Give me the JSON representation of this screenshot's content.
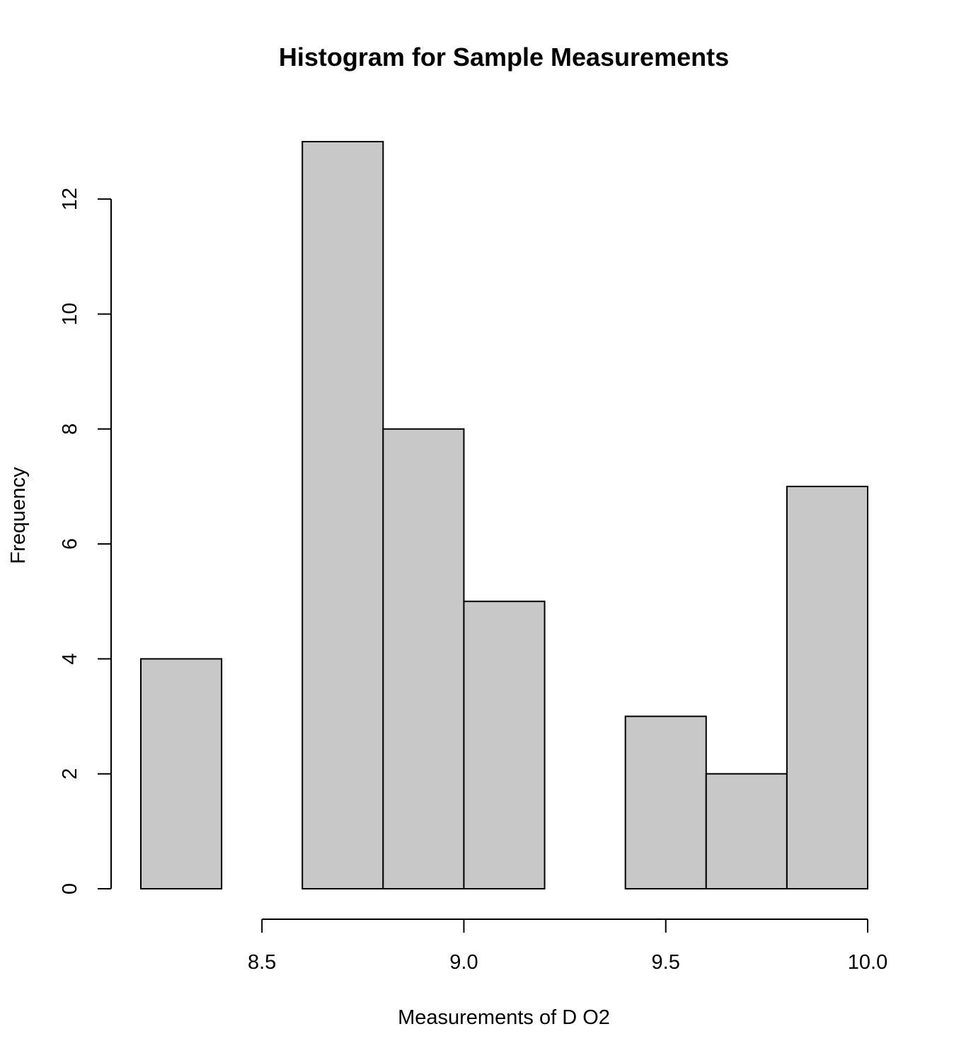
{
  "chart_data": {
    "type": "bar",
    "title": "Histogram for Sample Measurements",
    "xlabel": "Measurements of D O2",
    "ylabel": "Frequency",
    "bin_edges": [
      8.2,
      8.4,
      8.6,
      8.8,
      9.0,
      9.2,
      9.4,
      9.6,
      9.8,
      10.0
    ],
    "values": [
      4,
      0,
      13,
      8,
      5,
      0,
      3,
      2,
      7
    ],
    "xlim": [
      8.2,
      10.0
    ],
    "ylim": [
      0,
      13
    ],
    "x_ticks": [
      8.5,
      9.0,
      9.5,
      10.0
    ],
    "x_tick_labels": [
      "8.5",
      "9.0",
      "9.5",
      "10.0"
    ],
    "y_ticks": [
      0,
      2,
      4,
      6,
      8,
      10,
      12
    ],
    "y_tick_labels": [
      "0",
      "2",
      "4",
      "6",
      "8",
      "10",
      "12"
    ],
    "bar_fill": "#c8c8c8",
    "bar_stroke": "#000000",
    "grid": false,
    "legend": "none"
  }
}
